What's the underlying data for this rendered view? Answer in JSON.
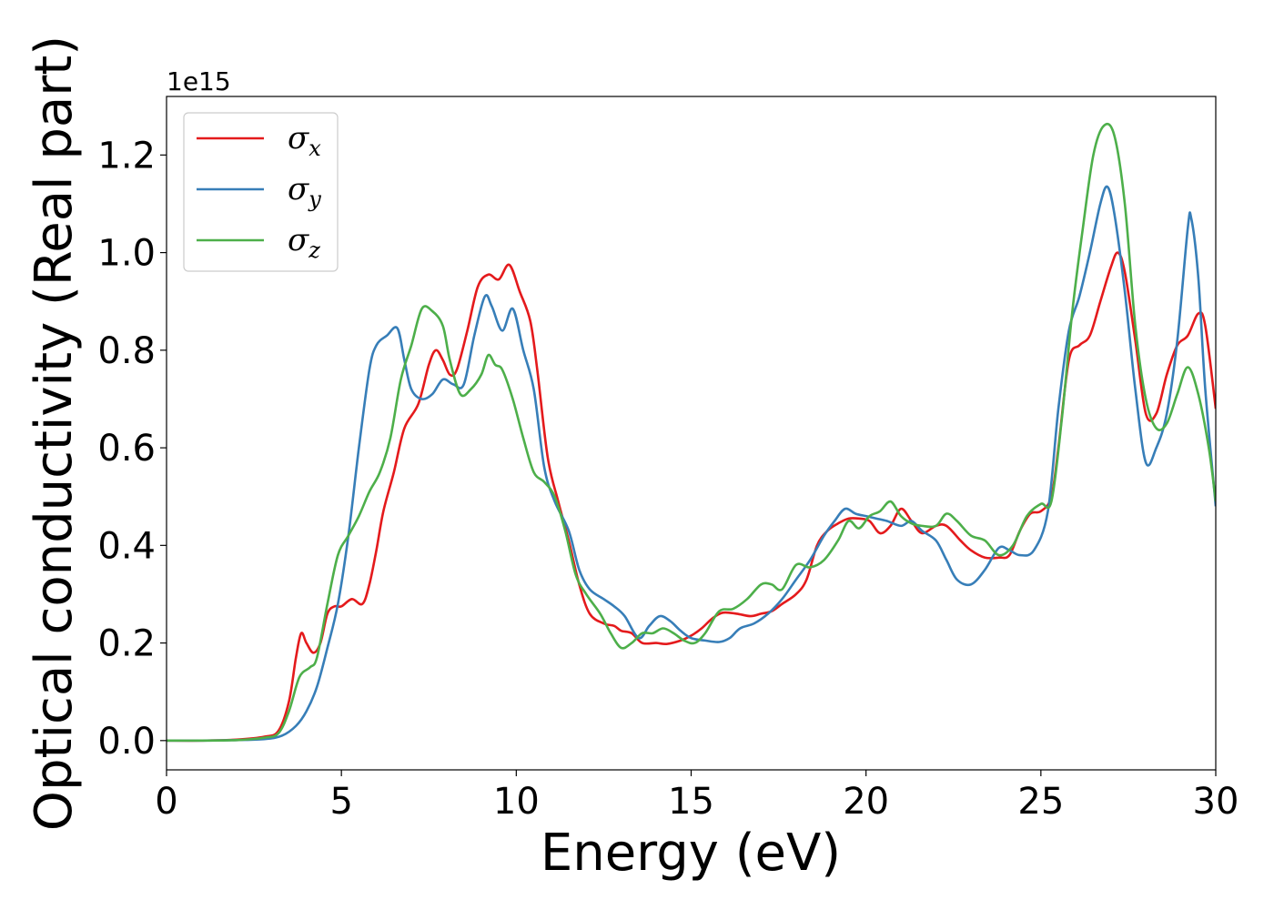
{
  "chart_data": {
    "type": "line",
    "xlabel": "Energy (eV)",
    "ylabel": "Optical conductivity (Real part)",
    "y_offset_label": "1e15",
    "xlim": [
      0,
      30
    ],
    "ylim": [
      -0.06,
      1.32
    ],
    "x_ticks": [
      0,
      5,
      10,
      15,
      20,
      25,
      30
    ],
    "y_ticks": [
      0.0,
      0.2,
      0.4,
      0.6,
      0.8,
      1.0,
      1.2
    ],
    "x_tick_labels": [
      "0",
      "5",
      "10",
      "15",
      "20",
      "25",
      "30"
    ],
    "y_tick_labels": [
      "0.0",
      "0.2",
      "0.4",
      "0.6",
      "0.8",
      "1.0",
      "1.2"
    ],
    "grid": false,
    "legend_position": "top-left",
    "series": [
      {
        "name": "σx",
        "legend_main": "σ",
        "legend_sub": "x",
        "color": "#e41a1c",
        "points": [
          [
            0,
            0
          ],
          [
            1,
            0
          ],
          [
            2,
            0.002
          ],
          [
            2.8,
            0.008
          ],
          [
            3.2,
            0.02
          ],
          [
            3.5,
            0.08
          ],
          [
            3.7,
            0.17
          ],
          [
            3.85,
            0.22
          ],
          [
            4.0,
            0.2
          ],
          [
            4.2,
            0.18
          ],
          [
            4.4,
            0.2
          ],
          [
            4.6,
            0.26
          ],
          [
            4.8,
            0.275
          ],
          [
            5.0,
            0.275
          ],
          [
            5.3,
            0.29
          ],
          [
            5.6,
            0.28
          ],
          [
            5.8,
            0.32
          ],
          [
            6.0,
            0.39
          ],
          [
            6.2,
            0.47
          ],
          [
            6.5,
            0.55
          ],
          [
            6.8,
            0.64
          ],
          [
            7.2,
            0.69
          ],
          [
            7.5,
            0.77
          ],
          [
            7.7,
            0.8
          ],
          [
            7.9,
            0.78
          ],
          [
            8.1,
            0.75
          ],
          [
            8.3,
            0.76
          ],
          [
            8.6,
            0.84
          ],
          [
            8.9,
            0.93
          ],
          [
            9.2,
            0.955
          ],
          [
            9.5,
            0.945
          ],
          [
            9.8,
            0.975
          ],
          [
            10.1,
            0.92
          ],
          [
            10.4,
            0.86
          ],
          [
            10.6,
            0.76
          ],
          [
            10.9,
            0.58
          ],
          [
            11.2,
            0.49
          ],
          [
            11.5,
            0.41
          ],
          [
            11.8,
            0.32
          ],
          [
            12.1,
            0.26
          ],
          [
            12.5,
            0.24
          ],
          [
            12.8,
            0.235
          ],
          [
            13.0,
            0.225
          ],
          [
            13.3,
            0.22
          ],
          [
            13.6,
            0.2
          ],
          [
            14.0,
            0.2
          ],
          [
            14.3,
            0.198
          ],
          [
            14.7,
            0.205
          ],
          [
            15.0,
            0.215
          ],
          [
            15.3,
            0.23
          ],
          [
            15.6,
            0.25
          ],
          [
            15.9,
            0.262
          ],
          [
            16.3,
            0.26
          ],
          [
            16.7,
            0.255
          ],
          [
            17.0,
            0.26
          ],
          [
            17.3,
            0.265
          ],
          [
            17.6,
            0.28
          ],
          [
            18.0,
            0.3
          ],
          [
            18.3,
            0.33
          ],
          [
            18.6,
            0.4
          ],
          [
            18.9,
            0.43
          ],
          [
            19.2,
            0.445
          ],
          [
            19.5,
            0.455
          ],
          [
            19.8,
            0.455
          ],
          [
            20.1,
            0.45
          ],
          [
            20.4,
            0.425
          ],
          [
            20.7,
            0.44
          ],
          [
            21.0,
            0.475
          ],
          [
            21.3,
            0.45
          ],
          [
            21.6,
            0.425
          ],
          [
            22.0,
            0.44
          ],
          [
            22.3,
            0.44
          ],
          [
            22.7,
            0.41
          ],
          [
            23.0,
            0.39
          ],
          [
            23.4,
            0.375
          ],
          [
            23.8,
            0.375
          ],
          [
            24.1,
            0.38
          ],
          [
            24.4,
            0.43
          ],
          [
            24.7,
            0.465
          ],
          [
            25.0,
            0.47
          ],
          [
            25.3,
            0.5
          ],
          [
            25.5,
            0.6
          ],
          [
            25.8,
            0.78
          ],
          [
            26.1,
            0.81
          ],
          [
            26.4,
            0.83
          ],
          [
            26.7,
            0.9
          ],
          [
            27.0,
            0.97
          ],
          [
            27.2,
            1.0
          ],
          [
            27.4,
            0.96
          ],
          [
            27.7,
            0.82
          ],
          [
            28.0,
            0.67
          ],
          [
            28.3,
            0.67
          ],
          [
            28.6,
            0.75
          ],
          [
            28.9,
            0.81
          ],
          [
            29.2,
            0.83
          ],
          [
            29.5,
            0.875
          ],
          [
            29.7,
            0.85
          ],
          [
            30,
            0.68
          ]
        ]
      },
      {
        "name": "σy",
        "legend_main": "σ",
        "legend_sub": "y",
        "color": "#377eb8",
        "points": [
          [
            0,
            0
          ],
          [
            1,
            0
          ],
          [
            2,
            0.001
          ],
          [
            2.8,
            0.003
          ],
          [
            3.3,
            0.01
          ],
          [
            3.7,
            0.03
          ],
          [
            4.0,
            0.06
          ],
          [
            4.3,
            0.11
          ],
          [
            4.6,
            0.19
          ],
          [
            4.9,
            0.28
          ],
          [
            5.2,
            0.42
          ],
          [
            5.5,
            0.6
          ],
          [
            5.8,
            0.76
          ],
          [
            6.0,
            0.81
          ],
          [
            6.3,
            0.83
          ],
          [
            6.6,
            0.845
          ],
          [
            6.8,
            0.78
          ],
          [
            7.0,
            0.72
          ],
          [
            7.3,
            0.7
          ],
          [
            7.6,
            0.71
          ],
          [
            7.9,
            0.74
          ],
          [
            8.2,
            0.73
          ],
          [
            8.5,
            0.73
          ],
          [
            8.8,
            0.83
          ],
          [
            9.1,
            0.91
          ],
          [
            9.3,
            0.89
          ],
          [
            9.6,
            0.84
          ],
          [
            9.9,
            0.885
          ],
          [
            10.2,
            0.8
          ],
          [
            10.5,
            0.72
          ],
          [
            10.8,
            0.56
          ],
          [
            11.1,
            0.49
          ],
          [
            11.5,
            0.43
          ],
          [
            11.8,
            0.35
          ],
          [
            12.1,
            0.31
          ],
          [
            12.5,
            0.29
          ],
          [
            12.8,
            0.275
          ],
          [
            13.1,
            0.255
          ],
          [
            13.5,
            0.21
          ],
          [
            13.8,
            0.235
          ],
          [
            14.1,
            0.255
          ],
          [
            14.4,
            0.245
          ],
          [
            14.7,
            0.225
          ],
          [
            15.0,
            0.21
          ],
          [
            15.4,
            0.205
          ],
          [
            15.8,
            0.202
          ],
          [
            16.1,
            0.21
          ],
          [
            16.4,
            0.23
          ],
          [
            16.8,
            0.24
          ],
          [
            17.2,
            0.26
          ],
          [
            17.6,
            0.29
          ],
          [
            18.0,
            0.33
          ],
          [
            18.4,
            0.37
          ],
          [
            18.8,
            0.42
          ],
          [
            19.1,
            0.45
          ],
          [
            19.4,
            0.475
          ],
          [
            19.7,
            0.465
          ],
          [
            20.0,
            0.46
          ],
          [
            20.3,
            0.455
          ],
          [
            20.6,
            0.45
          ],
          [
            21.0,
            0.44
          ],
          [
            21.3,
            0.45
          ],
          [
            21.6,
            0.43
          ],
          [
            22.0,
            0.41
          ],
          [
            22.3,
            0.37
          ],
          [
            22.6,
            0.33
          ],
          [
            23.0,
            0.32
          ],
          [
            23.4,
            0.35
          ],
          [
            23.8,
            0.395
          ],
          [
            24.1,
            0.39
          ],
          [
            24.4,
            0.38
          ],
          [
            24.8,
            0.39
          ],
          [
            25.2,
            0.47
          ],
          [
            25.5,
            0.68
          ],
          [
            25.8,
            0.84
          ],
          [
            26.1,
            0.91
          ],
          [
            26.4,
            1.0
          ],
          [
            26.7,
            1.1
          ],
          [
            26.9,
            1.135
          ],
          [
            27.1,
            1.08
          ],
          [
            27.4,
            0.92
          ],
          [
            27.7,
            0.72
          ],
          [
            28.0,
            0.57
          ],
          [
            28.3,
            0.6
          ],
          [
            28.6,
            0.67
          ],
          [
            28.9,
            0.82
          ],
          [
            29.2,
            1.05
          ],
          [
            29.3,
            1.07
          ],
          [
            29.5,
            0.95
          ],
          [
            29.7,
            0.72
          ],
          [
            30,
            0.48
          ]
        ]
      },
      {
        "name": "σz",
        "legend_main": "σ",
        "legend_sub": "z",
        "color": "#4daf4a",
        "points": [
          [
            0,
            0
          ],
          [
            1,
            0
          ],
          [
            2,
            0.001
          ],
          [
            2.8,
            0.006
          ],
          [
            3.2,
            0.015
          ],
          [
            3.5,
            0.06
          ],
          [
            3.8,
            0.13
          ],
          [
            4.1,
            0.15
          ],
          [
            4.3,
            0.17
          ],
          [
            4.6,
            0.28
          ],
          [
            4.9,
            0.38
          ],
          [
            5.2,
            0.42
          ],
          [
            5.5,
            0.46
          ],
          [
            5.8,
            0.51
          ],
          [
            6.1,
            0.55
          ],
          [
            6.4,
            0.62
          ],
          [
            6.7,
            0.74
          ],
          [
            7.0,
            0.81
          ],
          [
            7.3,
            0.885
          ],
          [
            7.6,
            0.88
          ],
          [
            7.9,
            0.85
          ],
          [
            8.1,
            0.78
          ],
          [
            8.4,
            0.71
          ],
          [
            8.7,
            0.72
          ],
          [
            9.0,
            0.75
          ],
          [
            9.2,
            0.79
          ],
          [
            9.4,
            0.77
          ],
          [
            9.6,
            0.76
          ],
          [
            9.9,
            0.7
          ],
          [
            10.2,
            0.62
          ],
          [
            10.5,
            0.55
          ],
          [
            10.8,
            0.53
          ],
          [
            11.1,
            0.5
          ],
          [
            11.4,
            0.43
          ],
          [
            11.7,
            0.34
          ],
          [
            12.0,
            0.3
          ],
          [
            12.4,
            0.26
          ],
          [
            12.7,
            0.22
          ],
          [
            13.0,
            0.19
          ],
          [
            13.3,
            0.2
          ],
          [
            13.6,
            0.22
          ],
          [
            13.9,
            0.22
          ],
          [
            14.2,
            0.23
          ],
          [
            14.5,
            0.22
          ],
          [
            14.8,
            0.205
          ],
          [
            15.1,
            0.2
          ],
          [
            15.4,
            0.22
          ],
          [
            15.8,
            0.265
          ],
          [
            16.2,
            0.27
          ],
          [
            16.6,
            0.29
          ],
          [
            17.0,
            0.32
          ],
          [
            17.3,
            0.32
          ],
          [
            17.6,
            0.31
          ],
          [
            18.0,
            0.36
          ],
          [
            18.4,
            0.355
          ],
          [
            18.8,
            0.37
          ],
          [
            19.2,
            0.41
          ],
          [
            19.5,
            0.45
          ],
          [
            19.8,
            0.435
          ],
          [
            20.1,
            0.46
          ],
          [
            20.4,
            0.47
          ],
          [
            20.7,
            0.49
          ],
          [
            21.0,
            0.46
          ],
          [
            21.3,
            0.445
          ],
          [
            21.6,
            0.44
          ],
          [
            22.0,
            0.44
          ],
          [
            22.3,
            0.465
          ],
          [
            22.6,
            0.45
          ],
          [
            23.0,
            0.42
          ],
          [
            23.4,
            0.41
          ],
          [
            23.8,
            0.38
          ],
          [
            24.2,
            0.4
          ],
          [
            24.6,
            0.46
          ],
          [
            25.0,
            0.485
          ],
          [
            25.3,
            0.49
          ],
          [
            25.6,
            0.66
          ],
          [
            25.9,
            0.88
          ],
          [
            26.2,
            1.05
          ],
          [
            26.5,
            1.2
          ],
          [
            26.8,
            1.26
          ],
          [
            27.1,
            1.24
          ],
          [
            27.4,
            1.1
          ],
          [
            27.7,
            0.85
          ],
          [
            28.0,
            0.7
          ],
          [
            28.3,
            0.64
          ],
          [
            28.6,
            0.65
          ],
          [
            28.9,
            0.71
          ],
          [
            29.2,
            0.765
          ],
          [
            29.5,
            0.71
          ],
          [
            29.8,
            0.6
          ],
          [
            30,
            0.49
          ]
        ]
      }
    ]
  }
}
